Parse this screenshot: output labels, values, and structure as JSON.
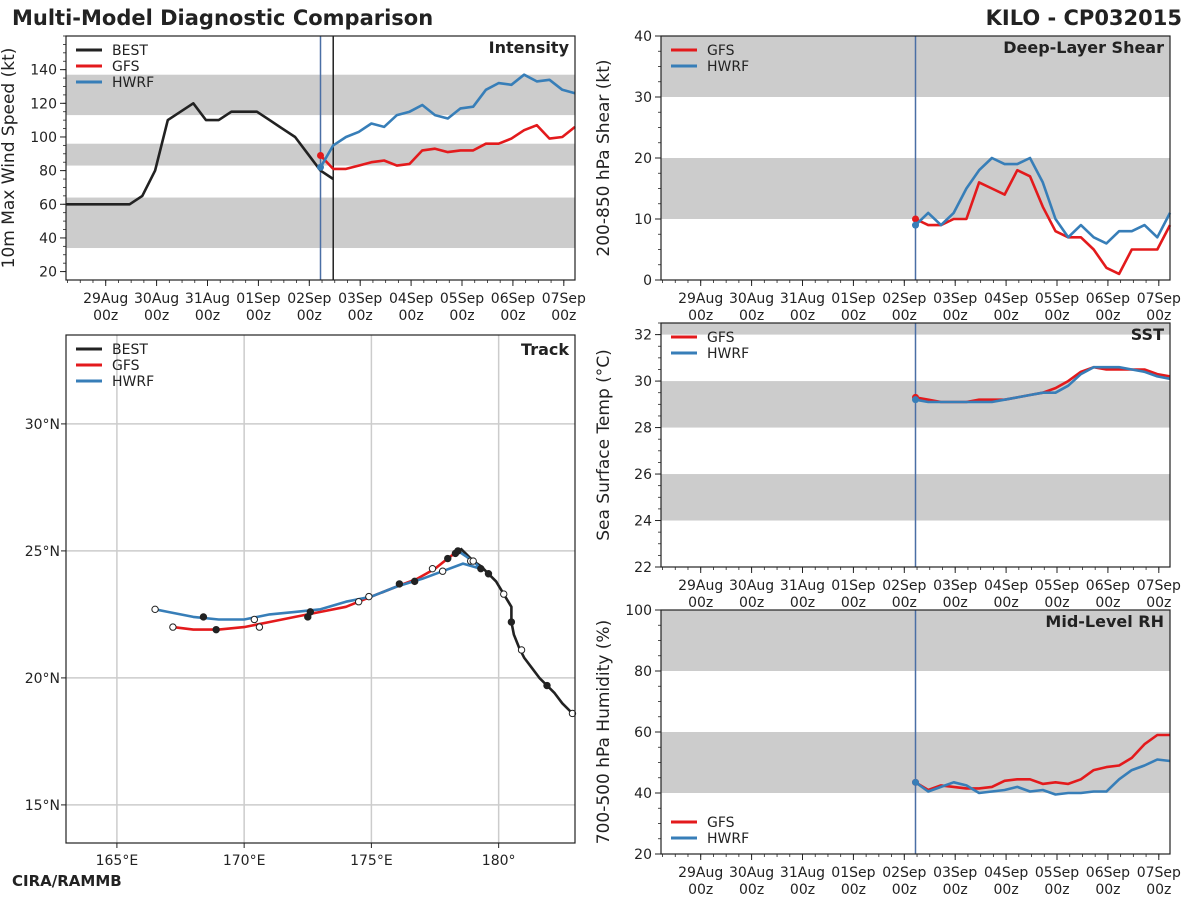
{
  "header": {
    "title": "Multi-Model Diagnostic Comparison",
    "storm": "KILO - CP032015"
  },
  "footer": {
    "credit": "CIRA/RAMMB"
  },
  "colors": {
    "best": "#222222",
    "gfs": "#e31a1c",
    "hwrf": "#377eb8",
    "band": "#cccccc",
    "grid": "#cccccc",
    "marker": "#4a6fa5"
  },
  "time_ticks": [
    "29Aug\n00z",
    "30Aug\n00z",
    "31Aug\n00z",
    "01Sep\n00z",
    "02Sep\n00z",
    "03Sep\n00z",
    "04Sep\n00z",
    "05Sep\n00z",
    "06Sep\n00z",
    "07Sep\n00z"
  ],
  "chart_data": [
    {
      "id": "intensity",
      "type": "line",
      "title": "Intensity",
      "ylabel": "10m Max Wind Speed (kt)",
      "ylim": [
        15,
        160
      ],
      "xlim": [
        0,
        10
      ],
      "yticks": [
        20,
        40,
        60,
        80,
        100,
        120,
        140
      ],
      "bands": [
        [
          34,
          64
        ],
        [
          83,
          96
        ],
        [
          113,
          137
        ]
      ],
      "vlines": [
        {
          "x": 5.0,
          "color": "marker"
        },
        {
          "x": 5.25,
          "color": "best"
        }
      ],
      "legend": [
        {
          "name": "BEST",
          "color": "best"
        },
        {
          "name": "GFS",
          "color": "gfs"
        },
        {
          "name": "HWRF",
          "color": "hwrf"
        }
      ],
      "series": [
        {
          "name": "BEST",
          "color": "best",
          "x": [
            0,
            0.75,
            1,
            1.25,
            1.5,
            1.75,
            2,
            2.5,
            2.75,
            3,
            3.25,
            3.5,
            3.75,
            4,
            4.25,
            4.5,
            4.75,
            5,
            5.25
          ],
          "y": [
            60,
            60,
            60,
            60,
            65,
            80,
            110,
            120,
            110,
            110,
            115,
            115,
            115,
            110,
            105,
            100,
            90,
            80,
            75
          ]
        },
        {
          "name": "GFS",
          "color": "gfs",
          "start_dot": true,
          "x": [
            5,
            5.25,
            5.5,
            5.75,
            6,
            6.25,
            6.5,
            6.75,
            7,
            7.25,
            7.5,
            7.75,
            8,
            8.25,
            8.5,
            8.75,
            9,
            9.25,
            9.5,
            9.75,
            10
          ],
          "y": [
            89,
            81,
            81,
            83,
            85,
            86,
            83,
            84,
            92,
            93,
            91,
            92,
            92,
            96,
            96,
            99,
            104,
            107,
            99,
            100,
            106
          ]
        },
        {
          "name": "HWRF",
          "color": "hwrf",
          "start_dot": true,
          "x": [
            5,
            5.25,
            5.5,
            5.75,
            6,
            6.25,
            6.5,
            6.75,
            7,
            7.25,
            7.5,
            7.75,
            8,
            8.25,
            8.5,
            8.75,
            9,
            9.25,
            9.5,
            9.75,
            10
          ],
          "y": [
            82,
            95,
            100,
            103,
            108,
            106,
            113,
            115,
            119,
            113,
            111,
            117,
            118,
            128,
            132,
            131,
            137,
            133,
            134,
            128,
            126
          ]
        }
      ]
    },
    {
      "id": "shear",
      "type": "line",
      "title": "Deep-Layer Shear",
      "ylabel": "200-850 hPa Shear (kt)",
      "ylim": [
        0,
        40
      ],
      "xlim": [
        0,
        10
      ],
      "yticks": [
        0,
        10,
        20,
        30,
        40
      ],
      "bands": [
        [
          10,
          20
        ],
        [
          30,
          40
        ]
      ],
      "vlines": [
        {
          "x": 5.0,
          "color": "marker"
        }
      ],
      "legend": [
        {
          "name": "GFS",
          "color": "gfs"
        },
        {
          "name": "HWRF",
          "color": "hwrf"
        }
      ],
      "series": [
        {
          "name": "GFS",
          "color": "gfs",
          "start_dot": true,
          "x": [
            5,
            5.25,
            5.5,
            5.75,
            6,
            6.25,
            6.5,
            6.75,
            7,
            7.25,
            7.5,
            7.75,
            8,
            8.25,
            8.5,
            8.75,
            9,
            9.25,
            9.5,
            9.75,
            10
          ],
          "y": [
            10,
            9,
            9,
            10,
            10,
            16,
            15,
            14,
            18,
            17,
            12,
            8,
            7,
            7,
            5,
            2,
            1,
            5,
            5,
            5,
            9
          ]
        },
        {
          "name": "HWRF",
          "color": "hwrf",
          "start_dot": true,
          "x": [
            5,
            5.25,
            5.5,
            5.75,
            6,
            6.25,
            6.5,
            6.75,
            7,
            7.25,
            7.5,
            7.75,
            8,
            8.25,
            8.5,
            8.75,
            9,
            9.25,
            9.5,
            9.75,
            10
          ],
          "y": [
            9,
            11,
            9,
            11,
            15,
            18,
            20,
            19,
            19,
            20,
            16,
            10,
            7,
            9,
            7,
            6,
            8,
            8,
            9,
            7,
            11
          ]
        }
      ]
    },
    {
      "id": "sst",
      "type": "line",
      "title": "SST",
      "ylabel": "Sea Surface Temp (°C)",
      "ylim": [
        22,
        32.5
      ],
      "xlim": [
        0,
        10
      ],
      "yticks": [
        22,
        24,
        26,
        28,
        30,
        32
      ],
      "bands": [
        [
          24,
          26
        ],
        [
          28,
          30
        ],
        [
          32,
          32.5
        ]
      ],
      "vlines": [
        {
          "x": 5.0,
          "color": "marker"
        }
      ],
      "legend": [
        {
          "name": "GFS",
          "color": "gfs"
        },
        {
          "name": "HWRF",
          "color": "hwrf"
        }
      ],
      "series": [
        {
          "name": "GFS",
          "color": "gfs",
          "start_dot": true,
          "x": [
            5,
            5.25,
            5.5,
            5.75,
            6,
            6.25,
            6.5,
            6.75,
            7,
            7.25,
            7.5,
            7.75,
            8,
            8.25,
            8.5,
            8.75,
            9,
            9.25,
            9.5,
            9.75,
            10
          ],
          "y": [
            29.3,
            29.2,
            29.1,
            29.1,
            29.1,
            29.2,
            29.2,
            29.2,
            29.3,
            29.4,
            29.5,
            29.7,
            30.0,
            30.4,
            30.6,
            30.5,
            30.5,
            30.5,
            30.5,
            30.3,
            30.2
          ]
        },
        {
          "name": "HWRF",
          "color": "hwrf",
          "start_dot": true,
          "x": [
            5,
            5.25,
            5.5,
            5.75,
            6,
            6.25,
            6.5,
            6.75,
            7,
            7.25,
            7.5,
            7.75,
            8,
            8.25,
            8.5,
            8.75,
            9,
            9.25,
            9.5,
            9.75,
            10
          ],
          "y": [
            29.2,
            29.1,
            29.1,
            29.1,
            29.1,
            29.1,
            29.1,
            29.2,
            29.3,
            29.4,
            29.5,
            29.5,
            29.8,
            30.3,
            30.6,
            30.6,
            30.6,
            30.5,
            30.4,
            30.2,
            30.1
          ]
        }
      ]
    },
    {
      "id": "rh",
      "type": "line",
      "title": "Mid-Level RH",
      "ylabel": "700-500 hPa Humidity (%)",
      "ylim": [
        20,
        100
      ],
      "xlim": [
        0,
        10
      ],
      "yticks": [
        20,
        40,
        60,
        80,
        100
      ],
      "bands": [
        [
          40,
          60
        ],
        [
          80,
          100
        ]
      ],
      "vlines": [
        {
          "x": 5.0,
          "color": "marker"
        }
      ],
      "legend_position": "bottom-left",
      "legend": [
        {
          "name": "GFS",
          "color": "gfs"
        },
        {
          "name": "HWRF",
          "color": "hwrf"
        }
      ],
      "series": [
        {
          "name": "GFS",
          "color": "gfs",
          "start_dot": true,
          "x": [
            5,
            5.25,
            5.5,
            5.75,
            6,
            6.25,
            6.5,
            6.75,
            7,
            7.25,
            7.5,
            7.75,
            8,
            8.25,
            8.5,
            8.75,
            9,
            9.25,
            9.5,
            9.75,
            10
          ],
          "y": [
            43.5,
            41,
            42.5,
            42,
            41.5,
            41.5,
            42,
            44,
            44.5,
            44.5,
            43,
            43.5,
            43,
            44.5,
            47.5,
            48.5,
            49,
            51.5,
            56,
            59,
            59
          ]
        },
        {
          "name": "HWRF",
          "color": "hwrf",
          "start_dot": true,
          "x": [
            5,
            5.25,
            5.5,
            5.75,
            6,
            6.25,
            6.5,
            6.75,
            7,
            7.25,
            7.5,
            7.75,
            8,
            8.25,
            8.5,
            8.75,
            9,
            9.25,
            9.5,
            9.75,
            10
          ],
          "y": [
            43.5,
            40.5,
            42,
            43.5,
            42.5,
            40,
            40.5,
            41,
            42,
            40.5,
            41,
            39.5,
            40,
            40,
            40.5,
            40.5,
            44.5,
            47.5,
            49,
            51,
            50.5
          ]
        }
      ]
    },
    {
      "id": "track",
      "type": "scatter",
      "title": "Track",
      "xlim": [
        163,
        183
      ],
      "ylim": [
        13.5,
        33.5
      ],
      "xticks": [
        165,
        170,
        175,
        180
      ],
      "yticks": [
        15,
        20,
        25,
        30
      ],
      "xticklabels": [
        "165°E",
        "170°E",
        "175°E",
        "180°"
      ],
      "yticklabels": [
        "15°N",
        "20°N",
        "25°N",
        "30°N"
      ],
      "legend": [
        {
          "name": "BEST",
          "color": "best"
        },
        {
          "name": "GFS",
          "color": "gfs"
        },
        {
          "name": "HWRF",
          "color": "hwrf"
        }
      ],
      "series": [
        {
          "name": "BEST",
          "color": "best",
          "lon": [
            182.9,
            182.5,
            182.2,
            181.9,
            181.6,
            181.3,
            181.0,
            180.8,
            180.6,
            180.5,
            180.5,
            180.2,
            179.9,
            179.6,
            179.3,
            179.0,
            178.7,
            178.5
          ],
          "lat": [
            18.6,
            19.0,
            19.4,
            19.7,
            20.0,
            20.4,
            20.8,
            21.2,
            21.7,
            22.2,
            22.8,
            23.3,
            23.8,
            24.1,
            24.4,
            24.6,
            24.9,
            25.1
          ],
          "markers": [
            {
              "lon": 182.9,
              "lat": 18.6,
              "filled": false
            },
            {
              "lon": 181.9,
              "lat": 19.7,
              "filled": true
            },
            {
              "lon": 180.9,
              "lat": 21.1,
              "filled": false
            },
            {
              "lon": 180.5,
              "lat": 22.2,
              "filled": true
            },
            {
              "lon": 180.2,
              "lat": 23.3,
              "filled": false
            },
            {
              "lon": 179.6,
              "lat": 24.1,
              "filled": true
            },
            {
              "lon": 178.9,
              "lat": 24.6,
              "filled": false
            },
            {
              "lon": 178.4,
              "lat": 25.0,
              "filled": true
            }
          ]
        },
        {
          "name": "GFS",
          "color": "gfs",
          "lon": [
            178.4,
            178.0,
            177.5,
            176.8,
            176.0,
            175.0,
            174.0,
            173.0,
            172.0,
            171.0,
            170.0,
            169.0,
            168.0,
            167.2
          ],
          "lat": [
            25.0,
            24.7,
            24.3,
            23.9,
            23.6,
            23.2,
            22.8,
            22.6,
            22.4,
            22.2,
            22.0,
            21.9,
            21.9,
            22.0
          ],
          "markers": [
            {
              "lon": 178.0,
              "lat": 24.7,
              "filled": true
            },
            {
              "lon": 177.4,
              "lat": 24.3,
              "filled": false
            },
            {
              "lon": 176.7,
              "lat": 23.8,
              "filled": true
            },
            {
              "lon": 174.5,
              "lat": 23.0,
              "filled": false
            },
            {
              "lon": 172.5,
              "lat": 22.4,
              "filled": true
            },
            {
              "lon": 170.6,
              "lat": 22.0,
              "filled": false
            },
            {
              "lon": 168.9,
              "lat": 21.9,
              "filled": true
            },
            {
              "lon": 167.2,
              "lat": 22.0,
              "filled": false
            }
          ]
        },
        {
          "name": "HWRF",
          "color": "hwrf",
          "lon": [
            178.4,
            178.7,
            179.1,
            179.3,
            178.6,
            177.8,
            177.0,
            176.0,
            175.0,
            174.0,
            173.0,
            172.0,
            171.0,
            170.0,
            169.0,
            168.0,
            167.0,
            166.5
          ],
          "lat": [
            25.0,
            24.8,
            24.5,
            24.3,
            24.5,
            24.2,
            23.9,
            23.6,
            23.2,
            23.0,
            22.7,
            22.6,
            22.5,
            22.3,
            22.3,
            22.4,
            22.6,
            22.7
          ],
          "markers": [
            {
              "lon": 179.3,
              "lat": 24.3,
              "filled": true
            },
            {
              "lon": 179.0,
              "lat": 24.6,
              "filled": false
            },
            {
              "lon": 178.3,
              "lat": 24.9,
              "filled": true
            },
            {
              "lon": 177.8,
              "lat": 24.2,
              "filled": false
            },
            {
              "lon": 176.1,
              "lat": 23.7,
              "filled": true
            },
            {
              "lon": 174.9,
              "lat": 23.2,
              "filled": false
            },
            {
              "lon": 172.6,
              "lat": 22.6,
              "filled": true
            },
            {
              "lon": 170.4,
              "lat": 22.3,
              "filled": false
            },
            {
              "lon": 168.4,
              "lat": 22.4,
              "filled": true
            },
            {
              "lon": 166.5,
              "lat": 22.7,
              "filled": false
            }
          ]
        }
      ]
    }
  ]
}
